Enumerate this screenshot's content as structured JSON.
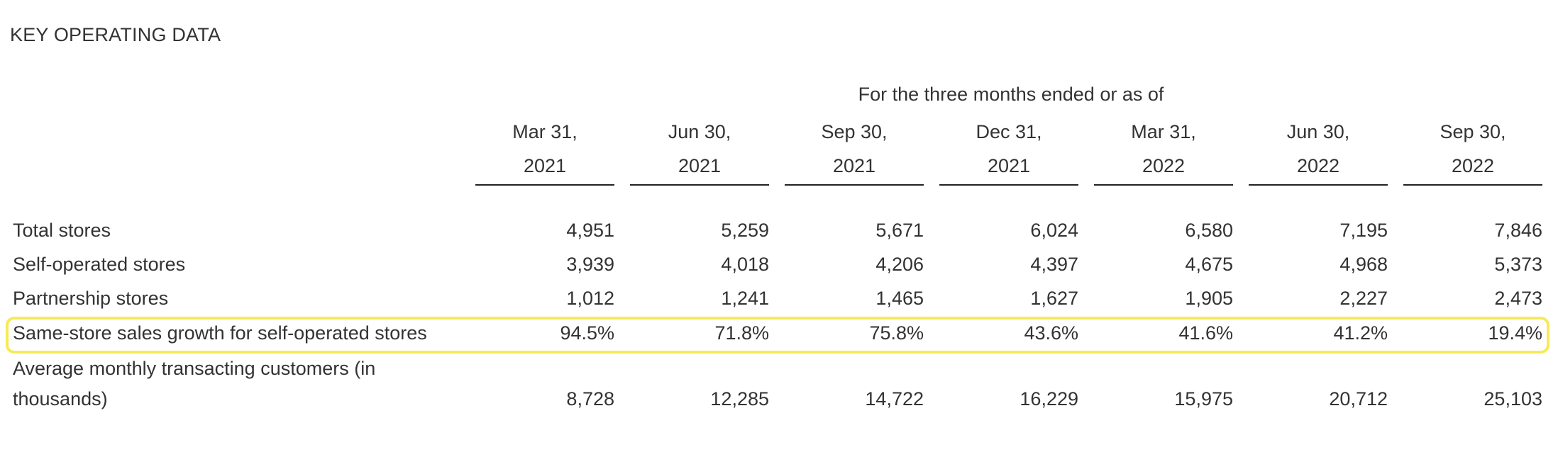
{
  "section_title": "KEY OPERATING DATA",
  "period_caption": "For the three months ended or as of",
  "highlight_color": "#f7ea57",
  "columns": [
    {
      "line1": "Mar 31,",
      "line2": "2021"
    },
    {
      "line1": "Jun 30,",
      "line2": "2021"
    },
    {
      "line1": "Sep 30,",
      "line2": "2021"
    },
    {
      "line1": "Dec 31,",
      "line2": "2021"
    },
    {
      "line1": "Mar 31,",
      "line2": "2022"
    },
    {
      "line1": "Jun 30,",
      "line2": "2022"
    },
    {
      "line1": "Sep 30,",
      "line2": "2022"
    }
  ],
  "rows": [
    {
      "label": "Total stores",
      "values": [
        "4,951",
        "5,259",
        "5,671",
        "6,024",
        "6,580",
        "7,195",
        "7,846"
      ]
    },
    {
      "label": "Self-operated stores",
      "values": [
        "3,939",
        "4,018",
        "4,206",
        "4,397",
        "4,675",
        "4,968",
        "5,373"
      ]
    },
    {
      "label": "Partnership stores",
      "values": [
        "1,012",
        "1,241",
        "1,465",
        "1,627",
        "1,905",
        "2,227",
        "2,473"
      ]
    },
    {
      "label": "Same-store sales growth for self-operated stores",
      "values": [
        "94.5%",
        "71.8%",
        "75.8%",
        "43.6%",
        "41.6%",
        "41.2%",
        "19.4%"
      ]
    },
    {
      "label_line1": "Average monthly transacting customers (in",
      "label_line2": "thousands)",
      "values": [
        "8,728",
        "12,285",
        "14,722",
        "16,229",
        "15,975",
        "20,712",
        "25,103"
      ]
    }
  ]
}
